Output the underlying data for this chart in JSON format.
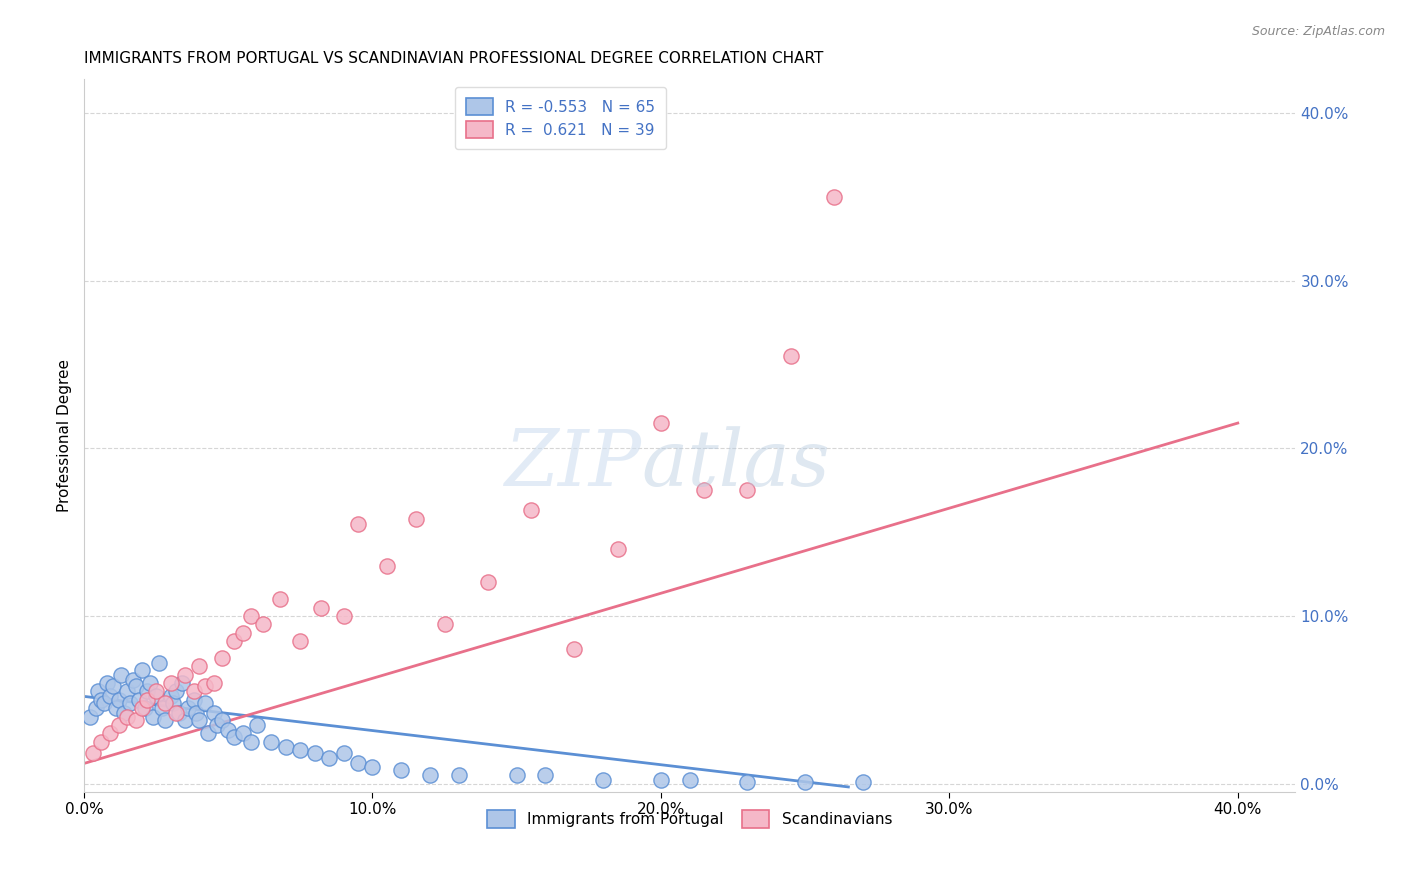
{
  "title": "IMMIGRANTS FROM PORTUGAL VS SCANDINAVIAN PROFESSIONAL DEGREE CORRELATION CHART",
  "source": "Source: ZipAtlas.com",
  "ylabel": "Professional Degree",
  "xlim": [
    0.0,
    0.42
  ],
  "ylim": [
    -0.005,
    0.42
  ],
  "xtick_values": [
    0.0,
    0.1,
    0.2,
    0.3,
    0.4
  ],
  "ytick_values": [
    0.0,
    0.1,
    0.2,
    0.3,
    0.4
  ],
  "blue_color": "#aec6e8",
  "pink_color": "#f5b8c8",
  "blue_edge_color": "#5b8fd4",
  "pink_edge_color": "#e8708a",
  "blue_line_color": "#5b8fd4",
  "pink_line_color": "#e8708a",
  "right_tick_color": "#4472C4",
  "blue_scatter_x": [
    0.002,
    0.004,
    0.005,
    0.006,
    0.007,
    0.008,
    0.009,
    0.01,
    0.011,
    0.012,
    0.013,
    0.014,
    0.015,
    0.016,
    0.017,
    0.018,
    0.019,
    0.02,
    0.021,
    0.022,
    0.023,
    0.024,
    0.025,
    0.026,
    0.027,
    0.028,
    0.03,
    0.031,
    0.032,
    0.033,
    0.034,
    0.035,
    0.036,
    0.038,
    0.039,
    0.04,
    0.042,
    0.043,
    0.045,
    0.046,
    0.048,
    0.05,
    0.052,
    0.055,
    0.058,
    0.06,
    0.065,
    0.07,
    0.075,
    0.08,
    0.085,
    0.09,
    0.095,
    0.1,
    0.11,
    0.12,
    0.13,
    0.15,
    0.16,
    0.18,
    0.2,
    0.21,
    0.23,
    0.25,
    0.27
  ],
  "blue_scatter_y": [
    0.04,
    0.045,
    0.055,
    0.05,
    0.048,
    0.06,
    0.052,
    0.058,
    0.045,
    0.05,
    0.065,
    0.042,
    0.055,
    0.048,
    0.062,
    0.058,
    0.05,
    0.068,
    0.045,
    0.055,
    0.06,
    0.04,
    0.052,
    0.072,
    0.045,
    0.038,
    0.052,
    0.048,
    0.055,
    0.042,
    0.06,
    0.038,
    0.045,
    0.05,
    0.042,
    0.038,
    0.048,
    0.03,
    0.042,
    0.035,
    0.038,
    0.032,
    0.028,
    0.03,
    0.025,
    0.035,
    0.025,
    0.022,
    0.02,
    0.018,
    0.015,
    0.018,
    0.012,
    0.01,
    0.008,
    0.005,
    0.005,
    0.005,
    0.005,
    0.002,
    0.002,
    0.002,
    0.001,
    0.001,
    0.001
  ],
  "pink_scatter_x": [
    0.003,
    0.006,
    0.009,
    0.012,
    0.015,
    0.018,
    0.02,
    0.022,
    0.025,
    0.028,
    0.03,
    0.032,
    0.035,
    0.038,
    0.04,
    0.042,
    0.045,
    0.048,
    0.052,
    0.055,
    0.058,
    0.062,
    0.068,
    0.075,
    0.082,
    0.09,
    0.095,
    0.105,
    0.115,
    0.125,
    0.14,
    0.155,
    0.17,
    0.185,
    0.2,
    0.215,
    0.23,
    0.245,
    0.26
  ],
  "pink_scatter_y": [
    0.018,
    0.025,
    0.03,
    0.035,
    0.04,
    0.038,
    0.045,
    0.05,
    0.055,
    0.048,
    0.06,
    0.042,
    0.065,
    0.055,
    0.07,
    0.058,
    0.06,
    0.075,
    0.085,
    0.09,
    0.1,
    0.095,
    0.11,
    0.085,
    0.105,
    0.1,
    0.155,
    0.13,
    0.158,
    0.095,
    0.12,
    0.163,
    0.08,
    0.14,
    0.215,
    0.175,
    0.175,
    0.255,
    0.35
  ],
  "blue_trend_x": [
    0.0,
    0.265
  ],
  "blue_trend_y": [
    0.052,
    -0.002
  ],
  "pink_trend_x": [
    0.0,
    0.4
  ],
  "pink_trend_y": [
    0.012,
    0.215
  ]
}
